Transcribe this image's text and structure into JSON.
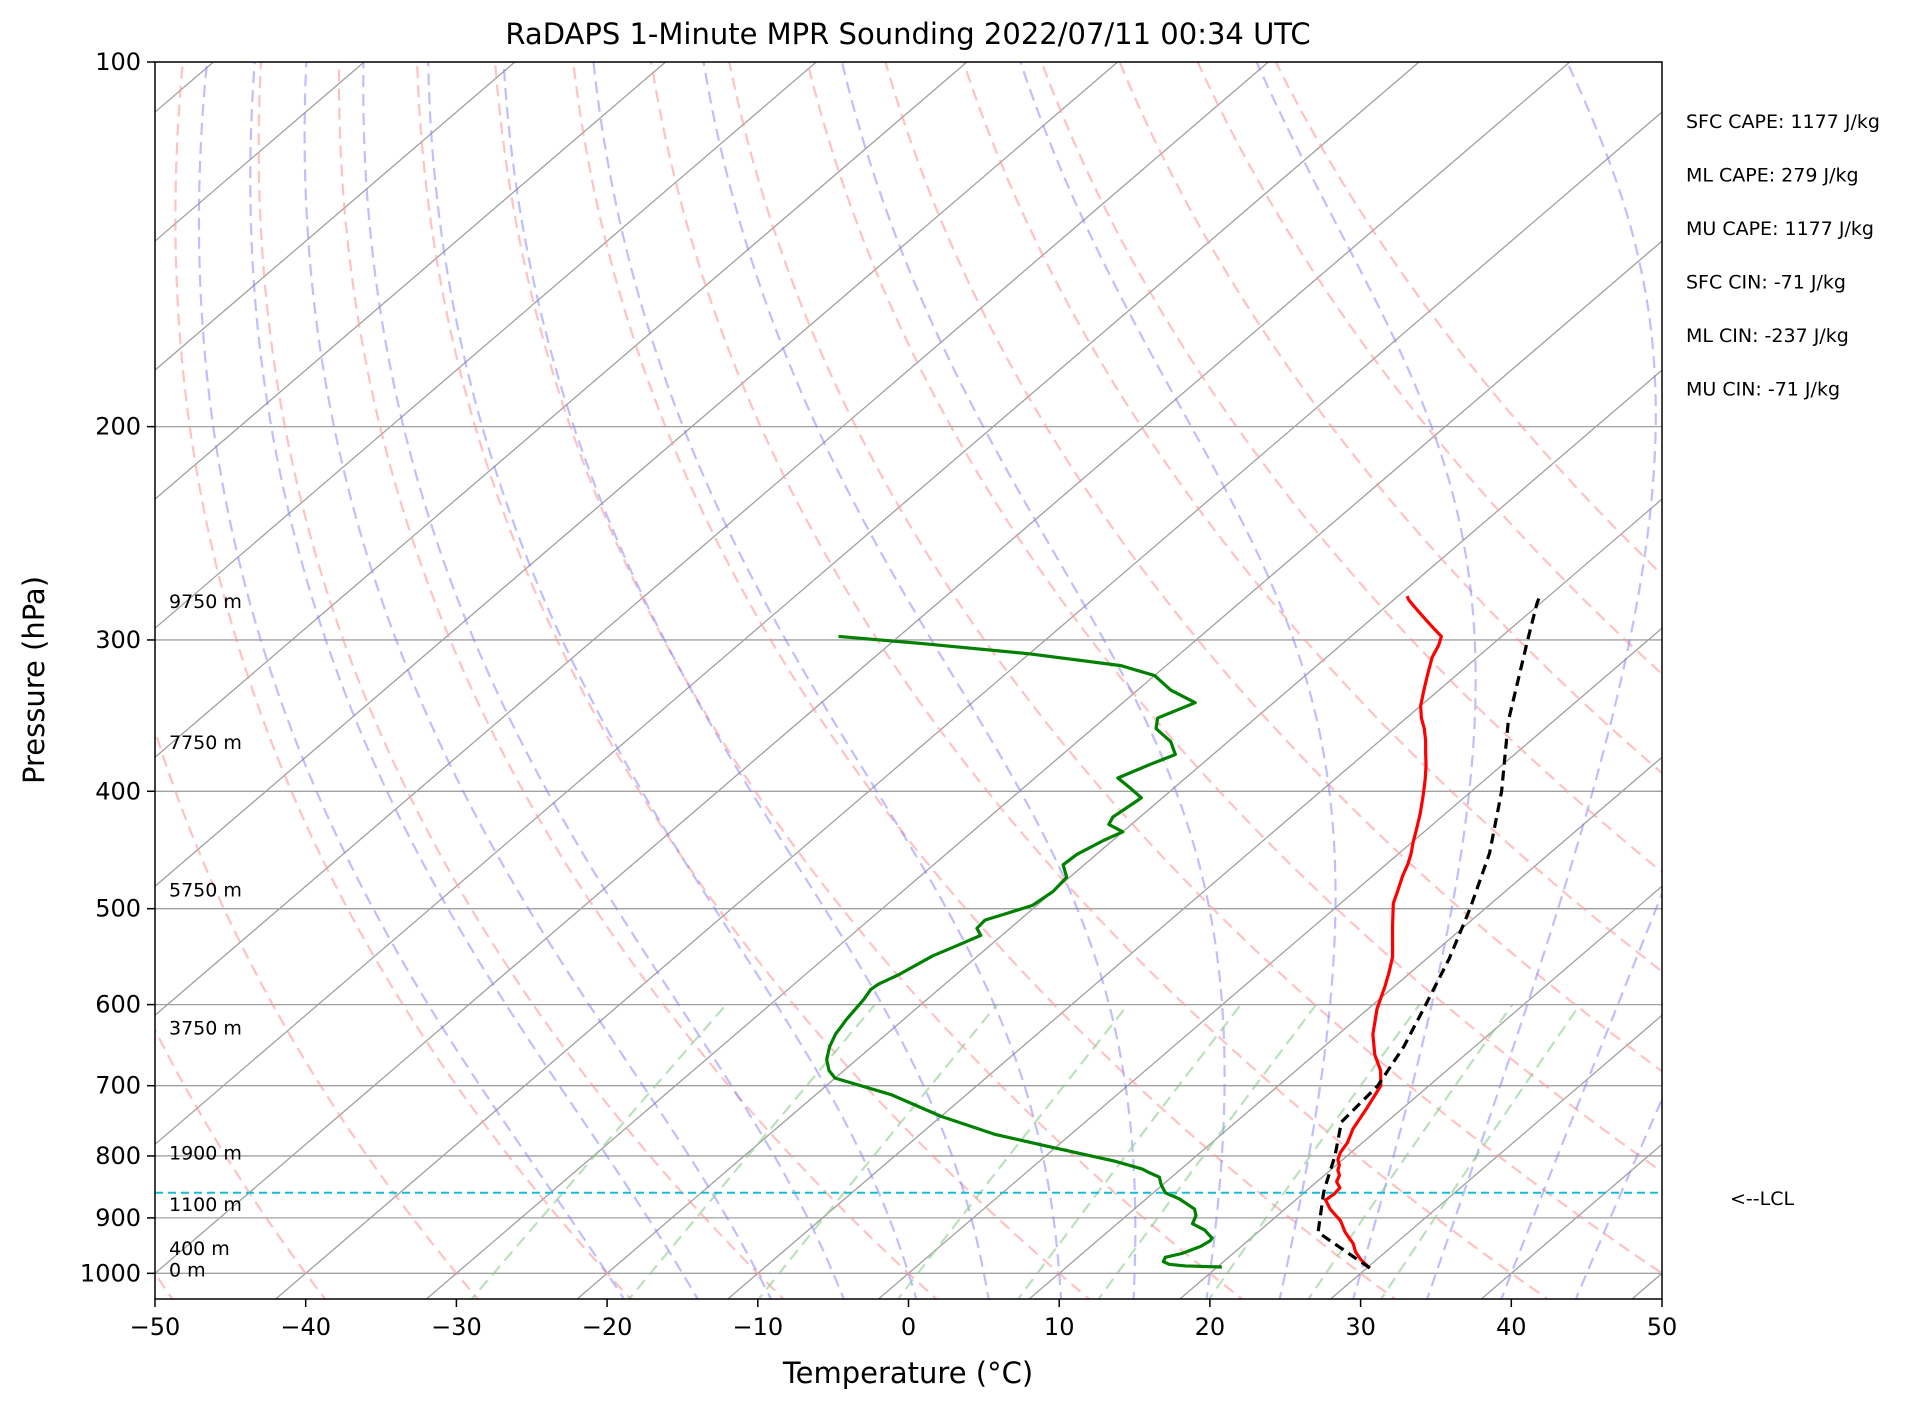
{
  "chart_data": {
    "type": "line",
    "title": "RaDAPS 1-Minute MPR Sounding 2022/07/11 00:34 UTC",
    "xlabel": "Temperature (°C)",
    "ylabel": "Pressure (hPa)",
    "xlim": [
      -50,
      50
    ],
    "ylim": [
      1050,
      100
    ],
    "y_scale": "log",
    "x_ticks": [
      "−50",
      "−40",
      "−30",
      "−20",
      "−10",
      "0",
      "10",
      "20",
      "30",
      "40",
      "50"
    ],
    "x_tick_values": [
      -50,
      -40,
      -30,
      -20,
      -10,
      0,
      10,
      20,
      30,
      40,
      50
    ],
    "y_ticks": [
      "1000",
      "900",
      "800",
      "700",
      "600",
      "500",
      "400",
      "300",
      "200",
      "100"
    ],
    "y_tick_values": [
      1000,
      900,
      800,
      700,
      600,
      500,
      400,
      300,
      200,
      100
    ],
    "grid": true,
    "colors": {
      "temperature": "#ff0000",
      "dewpoint": "#008000",
      "parcel": "#000000",
      "lcl": "#17becf",
      "isotherm": "#a0a0a0",
      "dry_adiabat": "#ff9999",
      "moist_adiabat": "#8080ff",
      "mixing_ratio": "#8fcc8f"
    },
    "series": [
      {
        "style": "solid",
        "color": "#ff0000",
        "points": [
          [
            30.2,
            990
          ],
          [
            29.0,
            975
          ],
          [
            28.0,
            960
          ],
          [
            27.2,
            945
          ],
          [
            25.8,
            925
          ],
          [
            24.6,
            905
          ],
          [
            23.0,
            885
          ],
          [
            22.0,
            870
          ],
          [
            22.1,
            860
          ],
          [
            22.0,
            850
          ],
          [
            21.3,
            840
          ],
          [
            21.0,
            830
          ],
          [
            20.5,
            822
          ],
          [
            20.2,
            814
          ],
          [
            19.7,
            806
          ],
          [
            19.3,
            795
          ],
          [
            19.0,
            780
          ],
          [
            18.3,
            760
          ],
          [
            17.6,
            730
          ],
          [
            16.8,
            700
          ],
          [
            15.6,
            680
          ],
          [
            14.0,
            660
          ],
          [
            12.3,
            635
          ],
          [
            10.6,
            605
          ],
          [
            9.4,
            580
          ],
          [
            8.6,
            565
          ],
          [
            7.6,
            548
          ],
          [
            5.3,
            518
          ],
          [
            3.5,
            495
          ],
          [
            2.8,
            483
          ],
          [
            2.0,
            470
          ],
          [
            1.4,
            459
          ],
          [
            0.8,
            450
          ],
          [
            0.1,
            441
          ],
          [
            -0.7,
            430
          ],
          [
            -1.7,
            417
          ],
          [
            -2.9,
            403
          ],
          [
            -4.0,
            391
          ],
          [
            -5.0,
            381
          ],
          [
            -6.0,
            372
          ],
          [
            -7.0,
            363
          ],
          [
            -8.0,
            355
          ],
          [
            -9.0,
            348
          ],
          [
            -10.0,
            340
          ],
          [
            -11.0,
            330
          ],
          [
            -12.0,
            320
          ],
          [
            -13.0,
            310
          ],
          [
            -13.5,
            303
          ],
          [
            -14.0,
            298
          ],
          [
            -15.5,
            292
          ],
          [
            -16.5,
            288
          ],
          [
            -18.0,
            282
          ],
          [
            -19.0,
            278
          ],
          [
            -19.4,
            276
          ]
        ]
      },
      {
        "style": "solid",
        "color": "#008000",
        "points": [
          [
            20.3,
            988
          ],
          [
            17.8,
            986
          ],
          [
            16.6,
            983
          ],
          [
            16.0,
            978
          ],
          [
            15.8,
            970
          ],
          [
            16.6,
            963
          ],
          [
            17.3,
            950
          ],
          [
            17.5,
            940
          ],
          [
            17.4,
            935
          ],
          [
            17.0,
            930
          ],
          [
            16.3,
            921
          ],
          [
            15.0,
            910
          ],
          [
            14.6,
            896
          ],
          [
            14.0,
            885
          ],
          [
            12.2,
            868
          ],
          [
            10.8,
            858
          ],
          [
            9.9,
            845
          ],
          [
            9.2,
            833
          ],
          [
            8.2,
            826
          ],
          [
            7.4,
            820
          ],
          [
            5.0,
            808
          ],
          [
            0.0,
            788
          ],
          [
            -5.0,
            768
          ],
          [
            -10.0,
            742
          ],
          [
            -15.0,
            712
          ],
          [
            -20.0,
            690
          ],
          [
            -21.0,
            680
          ],
          [
            -22.0,
            666
          ],
          [
            -22.8,
            650
          ],
          [
            -23.4,
            634
          ],
          [
            -23.6,
            625
          ],
          [
            -23.8,
            617
          ],
          [
            -24.0,
            605
          ],
          [
            -24.2,
            594
          ],
          [
            -24.5,
            583
          ],
          [
            -24.4,
            577
          ],
          [
            -23.8,
            567
          ],
          [
            -23.0,
            547
          ],
          [
            -22.0,
            534
          ],
          [
            -21.4,
            526
          ],
          [
            -22.2,
            519
          ],
          [
            -22.3,
            511
          ],
          [
            -21.3,
            504
          ],
          [
            -20.3,
            497
          ],
          [
            -20.0,
            484
          ],
          [
            -20.2,
            471
          ],
          [
            -21.4,
            460
          ],
          [
            -21.3,
            451
          ],
          [
            -20.6,
            439
          ],
          [
            -20.0,
            432
          ],
          [
            -21.5,
            426
          ],
          [
            -21.8,
            420
          ],
          [
            -21.5,
            409
          ],
          [
            -21.4,
            405
          ],
          [
            -22.8,
            398
          ],
          [
            -24.5,
            390
          ],
          [
            -23.4,
            380
          ],
          [
            -22.5,
            373
          ],
          [
            -23.8,
            364
          ],
          [
            -25.8,
            355
          ],
          [
            -26.5,
            348
          ],
          [
            -25.2,
            338
          ],
          [
            -27.8,
            330
          ],
          [
            -30.0,
            321
          ],
          [
            -33.0,
            315
          ],
          [
            -40.0,
            308
          ],
          [
            -48.0,
            302
          ],
          [
            -54.0,
            298
          ]
        ]
      },
      {
        "style": "dashed",
        "color": "#000000",
        "points": [
          [
            30.2,
            990
          ],
          [
            24.0,
            925
          ],
          [
            21.3,
            858
          ],
          [
            21.0,
            850
          ],
          [
            19.2,
            800
          ],
          [
            17.0,
            750
          ],
          [
            16.6,
            700
          ],
          [
            15.3,
            650
          ],
          [
            13.5,
            600
          ],
          [
            11.5,
            550
          ],
          [
            9.0,
            500
          ],
          [
            6.0,
            450
          ],
          [
            2.0,
            400
          ],
          [
            -3.0,
            350
          ],
          [
            -8.0,
            300
          ],
          [
            -10.2,
            280
          ],
          [
            -10.6,
            276
          ]
        ]
      }
    ],
    "lcl_pressure": 858,
    "lcl_label": "<--LCL",
    "height_labels": [
      {
        "text": "9750 m",
        "p": 279
      },
      {
        "text": "7750 m",
        "p": 365
      },
      {
        "text": "5750 m",
        "p": 483
      },
      {
        "text": "3750 m",
        "p": 628
      },
      {
        "text": "1900 m",
        "p": 796
      },
      {
        "text": "1100 m",
        "p": 878
      },
      {
        "text": "400 m",
        "p": 955
      },
      {
        "text": "0 m",
        "p": 995
      }
    ],
    "annotations": [
      "SFC CAPE: 1177 J/kg",
      "ML CAPE: 279 J/kg",
      "MU CAPE: 1177 J/kg",
      "SFC CIN: -71 J/kg",
      "ML CIN: -237 J/kg",
      "MU CIN: -71 J/kg"
    ]
  }
}
